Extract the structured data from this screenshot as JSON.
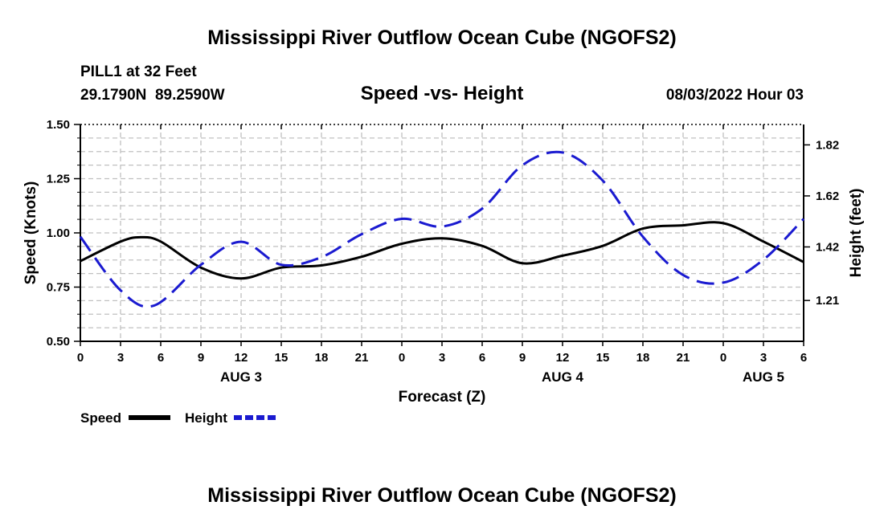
{
  "title": "Mississippi River Outflow Ocean Cube (NGOFS2)",
  "station": "PILL1 at 32 Feet",
  "coords": "29.1790N  89.2590W",
  "subtitle": "Speed -vs- Height",
  "datetime": "08/03/2022 Hour 03",
  "footer_title": "Mississippi River Outflow Ocean Cube (NGOFS2)",
  "colors": {
    "speed": "#000000",
    "height": "#1a1ad0",
    "grid": "#c0c0c0"
  },
  "chart_data": {
    "type": "line",
    "xlabel": "Forecast (Z)",
    "ylabel_left": "Speed (Knots)",
    "ylabel_right": "Height (feet)",
    "x_range": [
      0,
      54
    ],
    "x_tick_values": [
      0,
      3,
      6,
      9,
      12,
      15,
      18,
      21,
      24,
      27,
      30,
      33,
      36,
      39,
      42,
      45,
      48,
      51,
      54
    ],
    "x_tick_labels": [
      "0",
      "3",
      "6",
      "9",
      "12",
      "15",
      "18",
      "21",
      "0",
      "3",
      "6",
      "9",
      "12",
      "15",
      "18",
      "21",
      "0",
      "3",
      "6"
    ],
    "day_labels": [
      {
        "x": 12,
        "label": "AUG 3"
      },
      {
        "x": 36,
        "label": "AUG 4"
      },
      {
        "x": 51,
        "label": "AUG 5"
      }
    ],
    "y_left_range": [
      0.5,
      1.5
    ],
    "y_left_ticks": [
      0.5,
      0.75,
      1.0,
      1.25,
      1.5
    ],
    "y_left_tick_labels": [
      "0.50",
      "0.75",
      "1.00",
      "1.25",
      "1.50"
    ],
    "y_right_range": [
      1.05,
      1.9
    ],
    "y_right_ticks": [
      1.21,
      1.42,
      1.62,
      1.82
    ],
    "y_right_tick_labels": [
      "1.21",
      "1.42",
      "1.62",
      "1.82"
    ],
    "series": [
      {
        "name": "Speed",
        "axis": "left",
        "style": "solid",
        "x": [
          0,
          3,
          4.5,
          6,
          9,
          12,
          15,
          18,
          21,
          24,
          27,
          30,
          33,
          36,
          39,
          42,
          45,
          48,
          51,
          54
        ],
        "values": [
          0.87,
          0.96,
          0.98,
          0.96,
          0.84,
          0.79,
          0.84,
          0.85,
          0.89,
          0.95,
          0.975,
          0.94,
          0.86,
          0.895,
          0.94,
          1.02,
          1.035,
          1.045,
          0.96,
          0.865
        ]
      },
      {
        "name": "Height",
        "axis": "right",
        "style": "dashed",
        "x": [
          0,
          3,
          5.5,
          9,
          12,
          15,
          18,
          21,
          24,
          27,
          30,
          33,
          36,
          39,
          42,
          45,
          48,
          51,
          54
        ],
        "values": [
          1.46,
          1.25,
          1.19,
          1.35,
          1.44,
          1.35,
          1.38,
          1.47,
          1.53,
          1.5,
          1.57,
          1.74,
          1.79,
          1.68,
          1.46,
          1.31,
          1.28,
          1.37,
          1.53
        ]
      }
    ],
    "legend": [
      {
        "label": "Speed"
      },
      {
        "label": "Height"
      }
    ],
    "legend_position": "bottom-left"
  }
}
